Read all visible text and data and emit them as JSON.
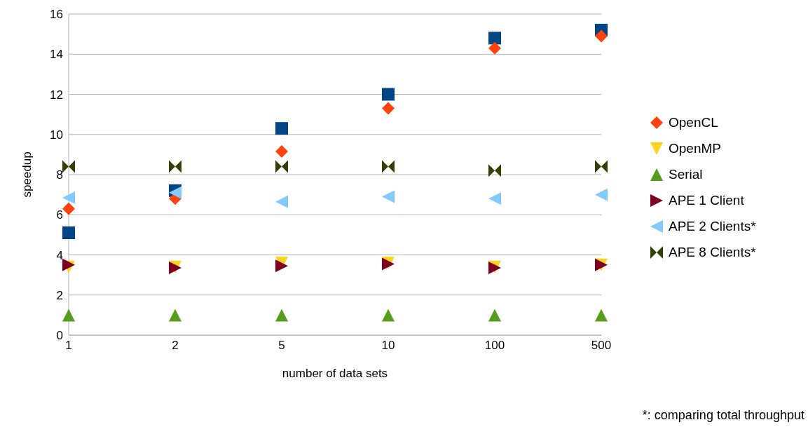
{
  "chart_data": {
    "type": "scatter",
    "xlabel": "number of data sets",
    "ylabel": "speedup",
    "categories": [
      "1",
      "2",
      "5",
      "10",
      "100",
      "500"
    ],
    "ylim": [
      0,
      16
    ],
    "yticks": [
      0,
      2,
      4,
      6,
      8,
      10,
      12,
      14,
      16
    ],
    "grid": "y",
    "legend": "right",
    "annotations": [
      "*: comparing total throughput"
    ],
    "series": [
      {
        "color": "#004586",
        "marker": "square",
        "values": [
          5.1,
          7.2,
          10.3,
          12.0,
          14.8,
          15.2
        ]
      },
      {
        "name": "OpenCL",
        "color": "#ff420e",
        "marker": "diamond",
        "values": [
          6.3,
          6.8,
          9.15,
          11.3,
          14.3,
          14.9
        ]
      },
      {
        "name": "OpenMP",
        "color": "#ffd320",
        "marker": "triangle-down",
        "values": [
          3.4,
          3.4,
          3.6,
          3.6,
          3.4,
          3.5
        ]
      },
      {
        "name": "Serial",
        "color": "#579d1c",
        "marker": "triangle",
        "values": [
          1,
          1,
          1,
          1,
          1,
          1
        ]
      },
      {
        "name": "APE 1 Client",
        "color": "#7e0021",
        "marker": "triangle-right",
        "values": [
          3.5,
          3.35,
          3.45,
          3.55,
          3.35,
          3.5
        ]
      },
      {
        "name": "APE 2 Clients*",
        "color": "#83caff",
        "marker": "triangle-left",
        "values": [
          6.85,
          7.1,
          6.65,
          6.9,
          6.8,
          7.0
        ]
      },
      {
        "name": "APE 8 Clients*",
        "color": "#314004",
        "values": [
          8.4,
          8.4,
          8.4,
          8.4,
          8.2,
          8.4
        ]
      }
    ]
  }
}
